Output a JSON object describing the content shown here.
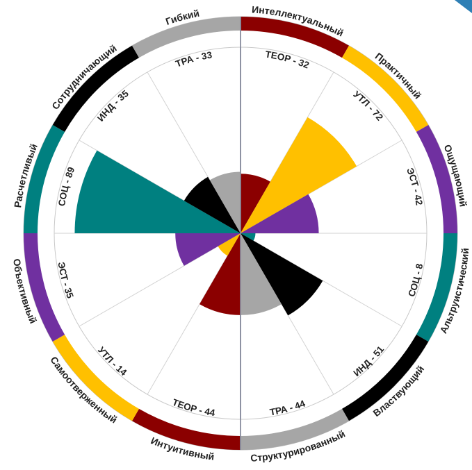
{
  "colors": {
    "ТЕОР": "#8b0000",
    "УТЛ": "#ffc000",
    "ЭСТ": "#7030a0",
    "СОЦ": "#008080",
    "ИНД": "#000000",
    "ТРА": "#a6a6a6",
    "corner_accent": "#2e7fb5"
  },
  "chart_data": {
    "type": "polar-area",
    "rmax": 100,
    "sectors": [
      {
        "pole": "Интеллектуальный",
        "code": "ТЕОР",
        "label": "ТЕОР - 32",
        "value": 32
      },
      {
        "pole": "Практичный",
        "code": "УТЛ",
        "label": "УТЛ - 72",
        "value": 72
      },
      {
        "pole": "Ощущающий",
        "code": "ЭСТ",
        "label": "ЭСТ - 42",
        "value": 42
      },
      {
        "pole": "Альтруистический",
        "code": "СОЦ",
        "label": "СОЦ - 8",
        "value": 8
      },
      {
        "pole": "Властвующий",
        "code": "ИНД",
        "label": "ИНД - 51",
        "value": 51
      },
      {
        "pole": "Структурированный",
        "code": "ТРА",
        "label": "ТРА - 44",
        "value": 44
      },
      {
        "pole": "Интуитивный",
        "code": "ТЕОР",
        "label": "ТЕОР - 44",
        "value": 44
      },
      {
        "pole": "Самоотверженный",
        "code": "УТЛ",
        "label": "УТЛ - 14",
        "value": 14
      },
      {
        "pole": "Объективный",
        "code": "ЭСТ",
        "label": "ЭСТ - 35",
        "value": 35
      },
      {
        "pole": "Расчетливый",
        "code": "СОЦ",
        "label": "СОЦ - 89",
        "value": 89
      },
      {
        "pole": "Сотрудничающий",
        "code": "ИНД",
        "label": "ИНД - 35",
        "value": 35
      },
      {
        "pole": "Гибкий",
        "code": "ТРА",
        "label": "ТРА - 33",
        "value": 33
      }
    ]
  }
}
